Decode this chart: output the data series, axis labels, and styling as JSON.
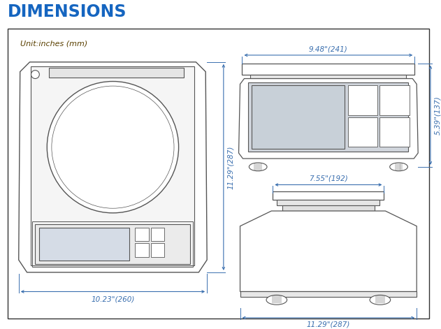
{
  "title": "DIMENSIONS",
  "title_color": "#1565c0",
  "unit_text": "Unit:inches (mm)",
  "unit_color": "#5a4000",
  "bg_color": "#ffffff",
  "dim_color": "#3a6faf",
  "draw_color": "#555555",
  "dims": {
    "front_width": "10.23\"(260)",
    "front_height": "11.29\"(287)",
    "side_width": "9.48\"(241)",
    "side_height": "5.39\"(137)",
    "bottom_width": "7.55\"(192)",
    "bottom_base": "11.29\"(287)"
  }
}
